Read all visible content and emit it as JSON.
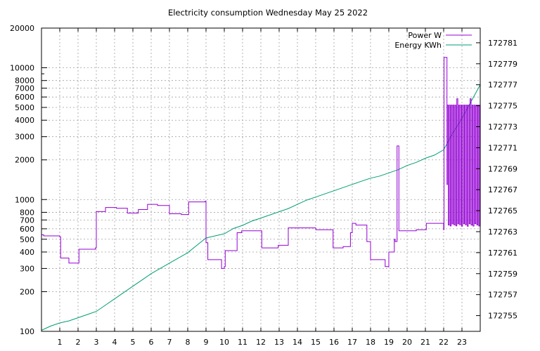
{
  "chart_data": {
    "type": "line",
    "title": "Electricity consumption Wednesday May 25 2022",
    "xlabel": "",
    "ylabel": "",
    "y2label": "",
    "xlim": [
      0,
      24
    ],
    "ylim": [
      100,
      20000
    ],
    "yscale": "log",
    "y2lim": [
      172753.5,
      172782.4
    ],
    "grid": true,
    "legend_position": "top-right",
    "x_ticks": [
      "1",
      "2",
      "3",
      "4",
      "5",
      "6",
      "7",
      "8",
      "9",
      "10",
      "11",
      "12",
      "13",
      "14",
      "15",
      "16",
      "17",
      "18",
      "19",
      "20",
      "21",
      "22",
      "23"
    ],
    "y_ticks": [
      {
        "value": 100,
        "label": "100"
      },
      {
        "value": 200,
        "label": "200"
      },
      {
        "value": 300,
        "label": "300"
      },
      {
        "value": 400,
        "label": "400"
      },
      {
        "value": 500,
        "label": "500"
      },
      {
        "value": 600,
        "label": "600"
      },
      {
        "value": 700,
        "label": "700"
      },
      {
        "value": 800,
        "label": "800"
      },
      {
        "value": 1000,
        "label": "1000"
      },
      {
        "value": 2000,
        "label": "2000"
      },
      {
        "value": 3000,
        "label": "3000"
      },
      {
        "value": 4000,
        "label": "4000"
      },
      {
        "value": 5000,
        "label": "5000"
      },
      {
        "value": 6000,
        "label": "6000"
      },
      {
        "value": 7000,
        "label": "7000"
      },
      {
        "value": 8000,
        "label": "8000"
      },
      {
        "value": 10000,
        "label": "10000"
      },
      {
        "value": 20000,
        "label": "20000"
      }
    ],
    "y2_ticks": [
      "172755",
      "172757",
      "172759",
      "172761",
      "172763",
      "172765",
      "172767",
      "172769",
      "172771",
      "172773",
      "172775",
      "172777",
      "172779",
      "172781"
    ],
    "series": [
      {
        "name": "Power W",
        "color": "#9400d3",
        "axis": "left",
        "step": true,
        "x": [
          0,
          0.12,
          1.0,
          1.05,
          1.5,
          2.0,
          2.05,
          2.95,
          3.0,
          3.5,
          4.1,
          4.7,
          5.3,
          5.8,
          6.35,
          7.0,
          7.65,
          8.05,
          8.95,
          9.0,
          9.1,
          9.85,
          10.0,
          10.05,
          10.7,
          10.95,
          11.95,
          12.05,
          12.95,
          13.5,
          13.9,
          15.0,
          15.95,
          16.05,
          16.5,
          16.9,
          17.0,
          17.2,
          17.8,
          18.0,
          18.8,
          19.0,
          19.1,
          19.3,
          19.35,
          19.45,
          19.55,
          20.0,
          20.5,
          21.0,
          21.05,
          21.85,
          22.0
        ],
        "y": [
          540,
          530,
          520,
          360,
          330,
          330,
          420,
          430,
          810,
          870,
          860,
          790,
          840,
          920,
          900,
          780,
          770,
          960,
          970,
          470,
          350,
          300,
          310,
          410,
          560,
          580,
          580,
          430,
          450,
          610,
          610,
          590,
          430,
          430,
          440,
          560,
          660,
          640,
          480,
          350,
          310,
          400,
          400,
          500,
          480,
          2550,
          580,
          580,
          590,
          590,
          660,
          660,
          590
        ],
        "x_burst_start": 22.0,
        "x_burst_end": 24.0,
        "burst_high": 5200,
        "burst_low": 640,
        "burst_peak": 12000
      },
      {
        "name": "Energy KWh",
        "color": "#009e73",
        "axis": "right",
        "step": false,
        "x": [
          0,
          0.5,
          1,
          1.5,
          2,
          2.5,
          3,
          3.5,
          4,
          4.5,
          5,
          5.5,
          6,
          6.5,
          7,
          7.5,
          8,
          8.5,
          9,
          9.5,
          10,
          10.5,
          11,
          11.5,
          12,
          12.5,
          13,
          13.5,
          14,
          14.5,
          15,
          15.5,
          16,
          16.5,
          17,
          17.5,
          18,
          18.5,
          19,
          19.5,
          20,
          20.5,
          21,
          21.5,
          22,
          22.5,
          23,
          23.5,
          24
        ],
        "y": [
          172753.6,
          172754.0,
          172754.3,
          172754.5,
          172754.8,
          172755.1,
          172755.4,
          172756.0,
          172756.6,
          172757.2,
          172757.8,
          172758.4,
          172759.0,
          172759.5,
          172760.0,
          172760.5,
          172761.0,
          172761.7,
          172762.4,
          172762.6,
          172762.8,
          172763.3,
          172763.6,
          172764.0,
          172764.3,
          172764.6,
          172764.9,
          172765.2,
          172765.6,
          172766.0,
          172766.3,
          172766.6,
          172766.9,
          172767.2,
          172767.5,
          172767.8,
          172768.1,
          172768.3,
          172768.6,
          172768.9,
          172769.3,
          172769.6,
          172770.0,
          172770.3,
          172770.8,
          172772.4,
          172773.8,
          172775.4,
          172777.0
        ]
      }
    ]
  }
}
